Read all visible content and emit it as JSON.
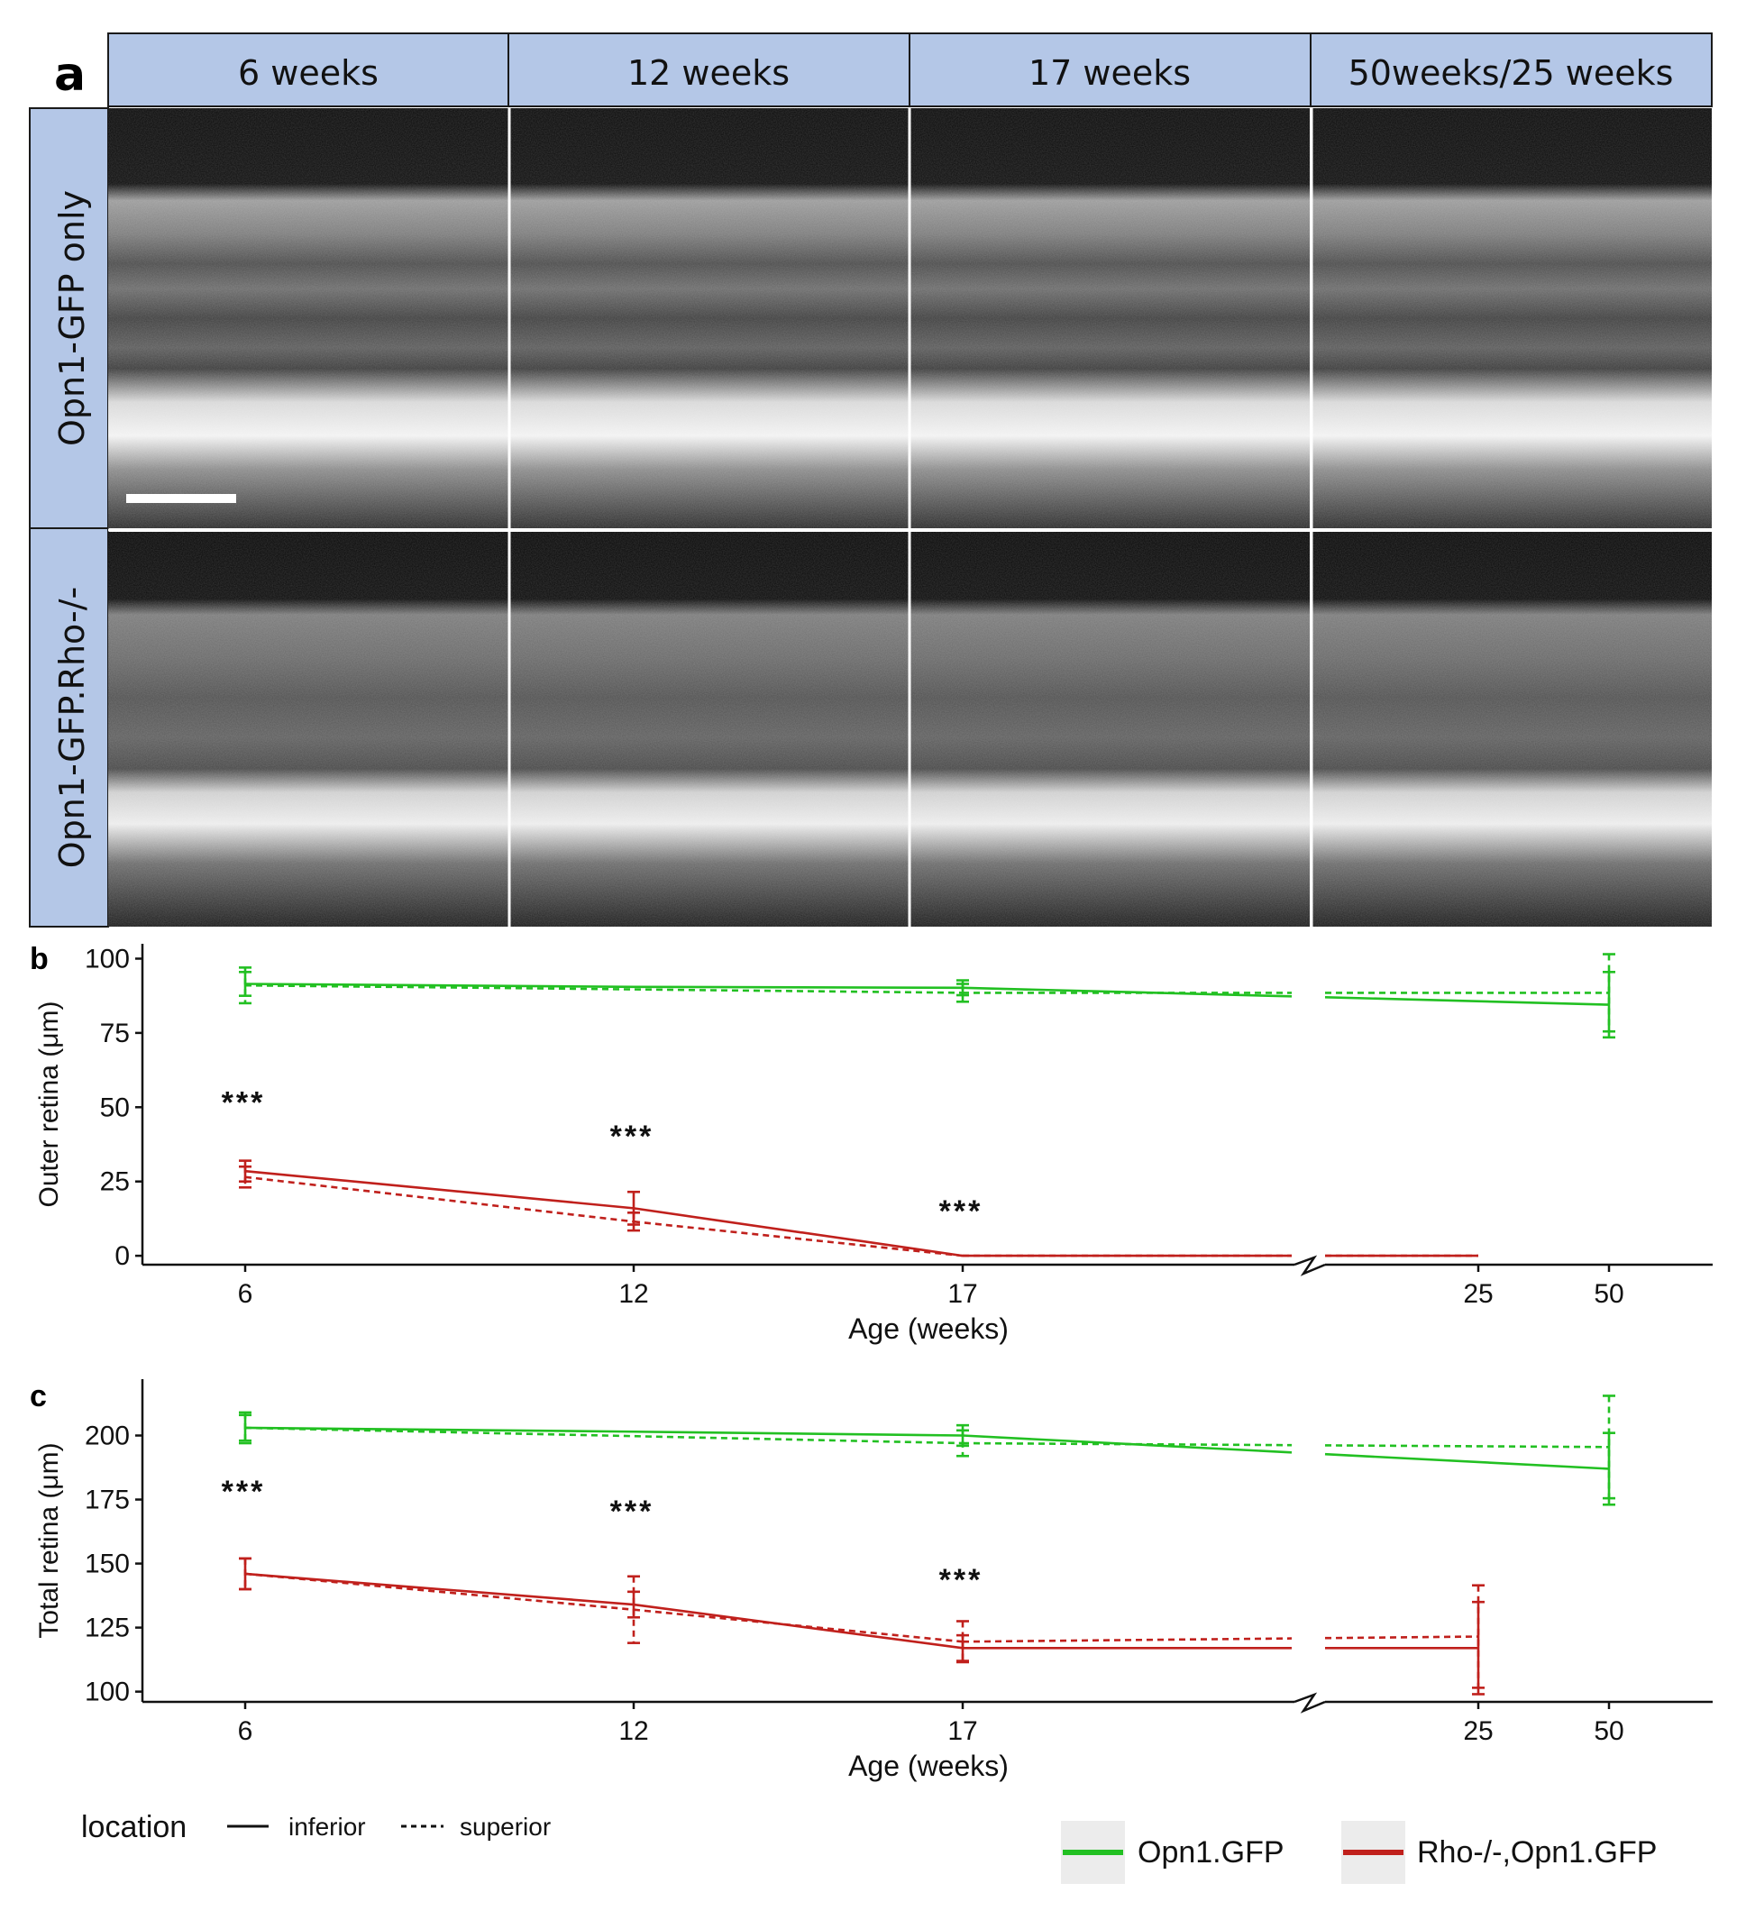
{
  "panel_a": {
    "panel_label": "a",
    "column_headers": [
      "6 weeks",
      "12 weeks",
      "17 weeks",
      "50weeks/25 weeks"
    ],
    "row_labels": [
      "Opn1-GFP only",
      "Opn1-GFP.Rho-/-"
    ],
    "header_color": "#b4c7e7"
  },
  "legend": {
    "location_title": "location",
    "location_entries": [
      "inferior",
      "superior"
    ],
    "group_entries": [
      {
        "name": "Opn1.GFP",
        "color": "#22c022"
      },
      {
        "name": "Rho-/-,Opn1.GFP",
        "color": "#c0201c"
      }
    ]
  },
  "chart_data": [
    {
      "panel_label": "b",
      "type": "line",
      "xlabel": "Age (weeks)",
      "ylabel": "Outer retina (μm)",
      "x_ticks": [
        "6",
        "12",
        "17",
        "25",
        "50"
      ],
      "y_ticks": [
        0,
        25,
        50,
        75,
        100
      ],
      "ylim": [
        -3,
        105
      ],
      "axis_break": true,
      "significance": [
        {
          "x": "6",
          "label": "***"
        },
        {
          "x": "12",
          "label": "***"
        },
        {
          "x": "17",
          "label": "***"
        }
      ],
      "series": [
        {
          "group": "Opn1.GFP",
          "location": "inferior",
          "points": [
            {
              "x": "6",
              "y": 91.5,
              "err": 4
            },
            {
              "x": "12",
              "y": 90.5
            },
            {
              "x": "17",
              "y": 90.2,
              "err": 2.5
            },
            {
              "x": "50",
              "y": 84.5,
              "err": 11
            }
          ]
        },
        {
          "group": "Opn1.GFP",
          "location": "superior",
          "points": [
            {
              "x": "6",
              "y": 91,
              "err": 6
            },
            {
              "x": "17",
              "y": 88.5,
              "err": 3
            },
            {
              "x": "50",
              "y": 88.5,
              "err": 13
            }
          ]
        },
        {
          "group": "Rho-/-,Opn1.GFP",
          "location": "inferior",
          "points": [
            {
              "x": "6",
              "y": 28.5,
              "err": 3.5
            },
            {
              "x": "12",
              "y": 16,
              "err": 5.5
            },
            {
              "x": "17",
              "y": 0
            },
            {
              "x": "25",
              "y": 0
            }
          ]
        },
        {
          "group": "Rho-/-,Opn1.GFP",
          "location": "superior",
          "points": [
            {
              "x": "6",
              "y": 26.5,
              "err": 3.5
            },
            {
              "x": "12",
              "y": 11.5,
              "err": 3
            },
            {
              "x": "17",
              "y": 0
            },
            {
              "x": "25",
              "y": 0
            }
          ]
        }
      ]
    },
    {
      "panel_label": "c",
      "type": "line",
      "xlabel": "Age (weeks)",
      "ylabel": "Total retina (μm)",
      "x_ticks": [
        "6",
        "12",
        "17",
        "25",
        "50"
      ],
      "y_ticks": [
        100,
        125,
        150,
        175,
        200
      ],
      "ylim": [
        96,
        222
      ],
      "axis_break": true,
      "significance": [
        {
          "x": "6",
          "label": "***"
        },
        {
          "x": "12",
          "label": "***"
        },
        {
          "x": "17",
          "label": "***"
        }
      ],
      "series": [
        {
          "group": "Opn1.GFP",
          "location": "inferior",
          "points": [
            {
              "x": "6",
              "y": 203,
              "err": 5
            },
            {
              "x": "12",
              "y": 201.5
            },
            {
              "x": "17",
              "y": 200,
              "err": 4
            },
            {
              "x": "50",
              "y": 187,
              "err": 14
            }
          ]
        },
        {
          "group": "Opn1.GFP",
          "location": "superior",
          "points": [
            {
              "x": "6",
              "y": 203,
              "err": 6
            },
            {
              "x": "17",
              "y": 197,
              "err": 5
            },
            {
              "x": "50",
              "y": 195.5,
              "err": 20
            }
          ]
        },
        {
          "group": "Rho-/-,Opn1.GFP",
          "location": "inferior",
          "points": [
            {
              "x": "6",
              "y": 146,
              "err": 6
            },
            {
              "x": "12",
              "y": 134,
              "err": 5
            },
            {
              "x": "17",
              "y": 117,
              "err": 5
            },
            {
              "x": "25",
              "y": 117,
              "err": 18
            }
          ]
        },
        {
          "group": "Rho-/-,Opn1.GFP",
          "location": "superior",
          "points": [
            {
              "x": "6",
              "y": 146,
              "err": 6
            },
            {
              "x": "12",
              "y": 132,
              "err": 13
            },
            {
              "x": "17",
              "y": 119.5,
              "err": 8
            },
            {
              "x": "25",
              "y": 121.5,
              "err": 20
            }
          ]
        }
      ]
    }
  ]
}
